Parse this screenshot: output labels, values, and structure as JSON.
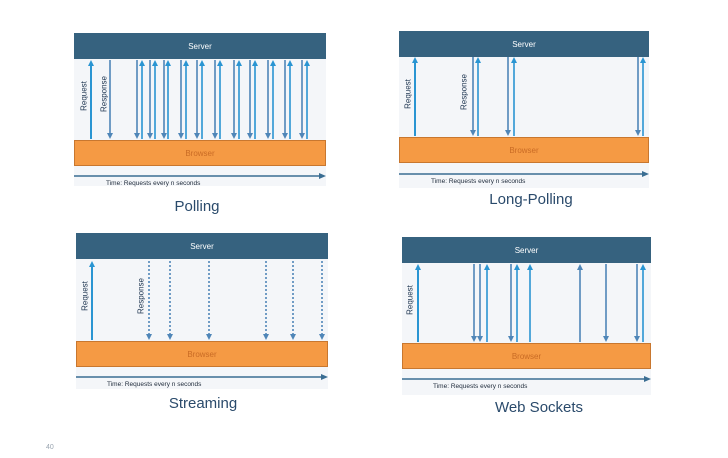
{
  "labels": {
    "server": "Server",
    "browser": "Browser",
    "request": "Request",
    "response": "Response",
    "time": "Time: Requests every n seconds"
  },
  "panels": [
    {
      "id": "polling",
      "title": "Polling"
    },
    {
      "id": "long-polling",
      "title": "Long-Polling"
    },
    {
      "id": "streaming",
      "title": "Streaming"
    },
    {
      "id": "web-sockets",
      "title": "Web Sockets"
    }
  ],
  "page_number": "40",
  "colors": {
    "server": "#36627f",
    "browser": "#f59a44",
    "arrow": "#2a95d2",
    "arrow_dark": "#4f86b8",
    "timeline": "#3a6d92"
  }
}
